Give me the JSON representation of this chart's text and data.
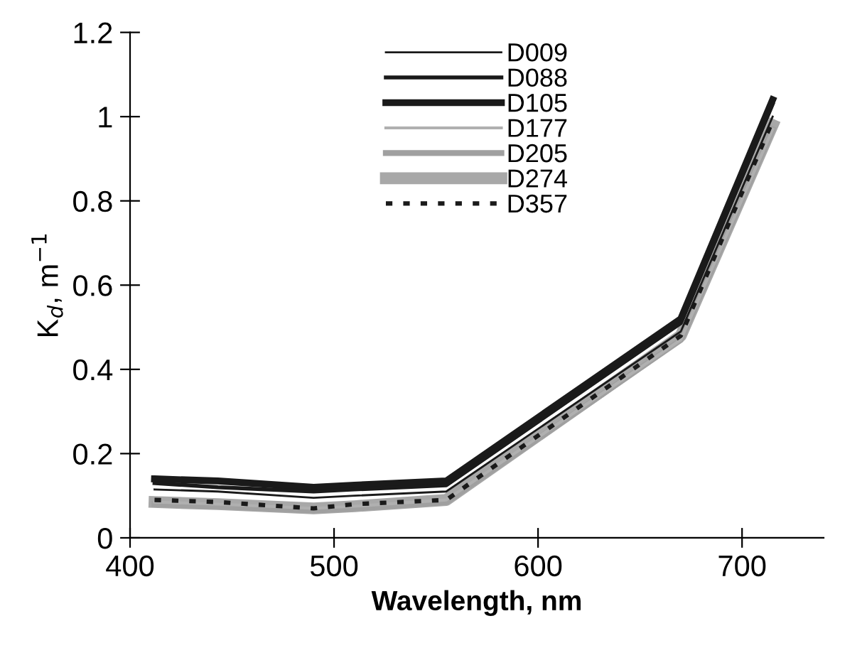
{
  "chart_data": {
    "type": "line",
    "xlabel": "Wavelength, nm",
    "ylabel": "K$_{d}$, m$^{−1}$",
    "x": [
      412,
      443,
      490,
      510,
      555,
      670,
      715
    ],
    "xlim": [
      400,
      740
    ],
    "xticks": [
      400,
      500,
      600,
      700
    ],
    "ylim": [
      0,
      1.2
    ],
    "yticks": [
      0,
      0.2,
      0.4,
      0.6,
      0.8,
      {
        "value": 1,
        "label": "1"
      },
      1.2
    ],
    "grid": false,
    "legend": "top",
    "marker": "none",
    "series": [
      {
        "name": "D009",
        "color": "#1a1a1a",
        "line_style": "solid",
        "values": [
          0.115,
          0.11,
          0.095,
          0.1,
          0.11,
          0.49,
          1.0
        ]
      },
      {
        "name": "D088",
        "color": "#1a1a1a",
        "line_style": "solid",
        "values": [
          0.13,
          0.12,
          0.11,
          0.115,
          0.125,
          0.51,
          1.03
        ]
      },
      {
        "name": "D105",
        "color": "#1a1a1a",
        "line_style": "solid",
        "values": [
          0.14,
          0.135,
          0.12,
          0.125,
          0.135,
          0.52,
          1.04
        ]
      },
      {
        "name": "D177",
        "color": "#b0b0b0",
        "line_style": "solid",
        "values": [
          0.085,
          0.08,
          0.07,
          0.075,
          0.09,
          0.47,
          0.97
        ]
      },
      {
        "name": "D205",
        "color": "#a0a0a0",
        "line_style": "solid",
        "values": [
          0.08,
          0.075,
          0.065,
          0.07,
          0.085,
          0.47,
          0.97
        ]
      },
      {
        "name": "D274",
        "color": "#a8a8a8",
        "line_style": "solid",
        "values": [
          0.085,
          0.08,
          0.07,
          0.075,
          0.09,
          0.48,
          0.98
        ]
      },
      {
        "name": "D357",
        "color": "#1a1a1a",
        "line_style": "dotted",
        "values": [
          0.09,
          0.085,
          0.07,
          0.08,
          0.09,
          0.48,
          0.99
        ]
      }
    ]
  }
}
